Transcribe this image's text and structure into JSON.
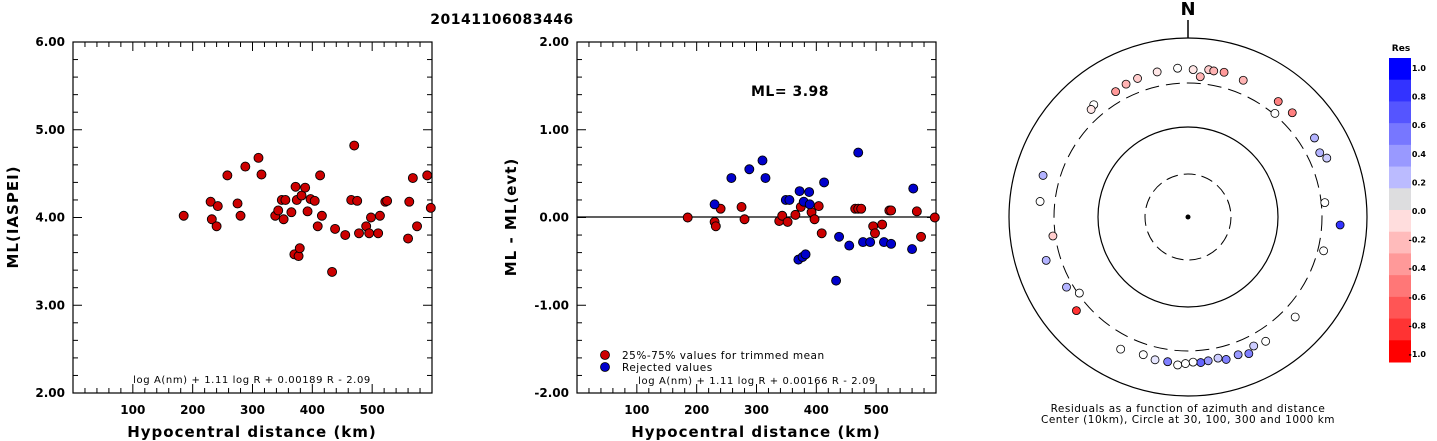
{
  "title": "20141106083446",
  "colors": {
    "red": "#cc0000",
    "blue": "#0000cc"
  },
  "chart_data": [
    {
      "type": "scatter",
      "name": "left",
      "xlabel": "Hypocentral distance (km)",
      "ylabel": "ML(IASPEI)",
      "xlim": [
        0,
        600
      ],
      "ylim": [
        2.0,
        6.0
      ],
      "xticks": [
        100,
        200,
        300,
        400,
        500
      ],
      "yticks": [
        "2.00",
        "3.00",
        "4.00",
        "5.00",
        "6.00"
      ],
      "formula": "log A(nm) + 1.11 log R + 0.00189 R - 2.09",
      "points": [
        [
          185,
          4.02
        ],
        [
          230,
          4.18
        ],
        [
          232,
          3.98
        ],
        [
          240,
          3.9
        ],
        [
          242,
          4.13
        ],
        [
          258,
          4.48
        ],
        [
          275,
          4.16
        ],
        [
          280,
          4.02
        ],
        [
          288,
          4.58
        ],
        [
          310,
          4.68
        ],
        [
          315,
          4.49
        ],
        [
          338,
          4.02
        ],
        [
          343,
          4.08
        ],
        [
          349,
          4.2
        ],
        [
          352,
          3.98
        ],
        [
          355,
          4.2
        ],
        [
          365,
          4.06
        ],
        [
          370,
          3.58
        ],
        [
          372,
          4.35
        ],
        [
          374,
          4.2
        ],
        [
          377,
          3.56
        ],
        [
          379,
          3.65
        ],
        [
          382,
          4.25
        ],
        [
          388,
          4.34
        ],
        [
          392,
          4.07
        ],
        [
          397,
          4.21
        ],
        [
          404,
          4.19
        ],
        [
          409,
          3.9
        ],
        [
          413,
          4.48
        ],
        [
          416,
          4.02
        ],
        [
          433,
          3.38
        ],
        [
          438,
          3.87
        ],
        [
          455,
          3.8
        ],
        [
          465,
          4.2
        ],
        [
          470,
          4.82
        ],
        [
          475,
          4.19
        ],
        [
          478,
          3.82
        ],
        [
          490,
          3.9
        ],
        [
          495,
          3.82
        ],
        [
          498,
          4.0
        ],
        [
          510,
          3.82
        ],
        [
          513,
          4.02
        ],
        [
          522,
          4.18
        ],
        [
          525,
          4.19
        ],
        [
          560,
          3.76
        ],
        [
          562,
          4.18
        ],
        [
          568,
          4.45
        ],
        [
          575,
          3.9
        ],
        [
          592,
          4.48
        ],
        [
          598,
          4.11
        ]
      ]
    },
    {
      "type": "scatter",
      "name": "middle",
      "xlabel": "Hypocentral distance (km)",
      "ylabel": "ML - ML(evt)",
      "xlim": [
        0,
        600
      ],
      "ylim": [
        -2.0,
        2.0
      ],
      "xticks": [
        100,
        200,
        300,
        400,
        500
      ],
      "yticks": [
        "-2.00",
        "-1.00",
        "0.00",
        "1.00",
        "2.00"
      ],
      "ml_label": "ML= 3.98",
      "formula": "log A(nm) + 1.11 log R + 0.00166 R - 2.09",
      "legend": [
        {
          "label": "25%-75% values for trimmed mean",
          "color": "#cc0000"
        },
        {
          "label": "Rejected values",
          "color": "#0000cc"
        }
      ],
      "points_red": [
        [
          185,
          0.0
        ],
        [
          230,
          -0.05
        ],
        [
          232,
          -0.1
        ],
        [
          240,
          0.1
        ],
        [
          275,
          0.12
        ],
        [
          280,
          -0.02
        ],
        [
          338,
          -0.04
        ],
        [
          343,
          0.02
        ],
        [
          352,
          -0.05
        ],
        [
          365,
          0.03
        ],
        [
          374,
          0.12
        ],
        [
          392,
          0.06
        ],
        [
          397,
          -0.02
        ],
        [
          404,
          0.13
        ],
        [
          409,
          -0.18
        ],
        [
          465,
          0.1
        ],
        [
          470,
          0.1
        ],
        [
          475,
          0.1
        ],
        [
          495,
          -0.1
        ],
        [
          498,
          -0.18
        ],
        [
          510,
          -0.08
        ],
        [
          522,
          0.08
        ],
        [
          525,
          0.08
        ],
        [
          568,
          0.07
        ],
        [
          575,
          -0.22
        ],
        [
          598,
          0.0
        ]
      ],
      "points_blue": [
        [
          230,
          0.15
        ],
        [
          258,
          0.45
        ],
        [
          288,
          0.55
        ],
        [
          310,
          0.65
        ],
        [
          315,
          0.45
        ],
        [
          349,
          0.2
        ],
        [
          355,
          0.2
        ],
        [
          370,
          -0.48
        ],
        [
          372,
          0.3
        ],
        [
          377,
          -0.45
        ],
        [
          379,
          0.18
        ],
        [
          382,
          -0.42
        ],
        [
          388,
          0.29
        ],
        [
          389,
          0.15
        ],
        [
          413,
          0.4
        ],
        [
          433,
          -0.72
        ],
        [
          438,
          -0.22
        ],
        [
          455,
          -0.32
        ],
        [
          470,
          0.74
        ],
        [
          478,
          -0.28
        ],
        [
          490,
          -0.28
        ],
        [
          513,
          -0.28
        ],
        [
          525,
          -0.3
        ],
        [
          560,
          -0.36
        ],
        [
          562,
          0.33
        ]
      ]
    }
  ],
  "polar": {
    "north_label": "N",
    "caption_line1": "Residuals as a function of azimuth and distance",
    "caption_line2": "Center (10km), Circle at 30, 100, 300 and 1000 km",
    "colorbar": {
      "title": "Res",
      "ticks": [
        "1.0",
        "0.8",
        "0.6",
        "0.4",
        "0.2",
        "0.0",
        "-0.2",
        "-0.4",
        "-0.6",
        "-0.8",
        "-1.0"
      ],
      "colors": [
        "#0000ff",
        "#3333ff",
        "#5555ff",
        "#7777ff",
        "#9999ff",
        "#bbbbff",
        "#dddddf",
        "#ffdddd",
        "#ffbbbb",
        "#ff9999",
        "#ff7777",
        "#ff5555",
        "#ff3333",
        "#ff0000"
      ]
    },
    "stations": [
      {
        "az": 2,
        "dist": 430,
        "res": -0.1
      },
      {
        "az": 356,
        "dist": 450,
        "res": 0.0
      },
      {
        "az": 8,
        "dist": 445,
        "res": -0.2
      },
      {
        "az": 10,
        "dist": 440,
        "res": -0.3
      },
      {
        "az": 14,
        "dist": 450,
        "res": -0.4
      },
      {
        "az": 5,
        "dist": 360,
        "res": -0.3
      },
      {
        "az": 348,
        "dist": 440,
        "res": -0.1
      },
      {
        "az": 340,
        "dist": 430,
        "res": -0.2
      },
      {
        "az": 22,
        "dist": 430,
        "res": -0.3
      },
      {
        "az": 335,
        "dist": 420,
        "res": -0.3
      },
      {
        "az": 330,
        "dist": 400,
        "res": -0.4
      },
      {
        "az": 320,
        "dist": 420,
        "res": 0.0
      },
      {
        "az": 318,
        "dist": 400,
        "res": -0.1
      },
      {
        "az": 38,
        "dist": 420,
        "res": -0.5
      },
      {
        "az": 45,
        "dist": 430,
        "res": -0.5
      },
      {
        "az": 40,
        "dist": 310,
        "res": 0.0
      },
      {
        "az": 58,
        "dist": 450,
        "res": 0.3
      },
      {
        "az": 64,
        "dist": 420,
        "res": 0.3
      },
      {
        "az": 67,
        "dist": 470,
        "res": 0.2
      },
      {
        "az": 84,
        "dist": 330,
        "res": 0.0
      },
      {
        "az": 93,
        "dist": 490,
        "res": 0.8
      },
      {
        "az": 104,
        "dist": 350,
        "res": 0.0
      },
      {
        "az": 133,
        "dist": 420,
        "res": 0.0
      },
      {
        "az": 148,
        "dist": 420,
        "res": 0.0
      },
      {
        "az": 153,
        "dist": 400,
        "res": 0.2
      },
      {
        "az": 156,
        "dist": 455,
        "res": 0.5
      },
      {
        "az": 160,
        "dist": 420,
        "res": 0.4
      },
      {
        "az": 165,
        "dist": 430,
        "res": 0.5
      },
      {
        "az": 168,
        "dist": 395,
        "res": 0.2
      },
      {
        "az": 172,
        "dist": 405,
        "res": 0.4
      },
      {
        "az": 175,
        "dist": 415,
        "res": 0.6
      },
      {
        "az": 178,
        "dist": 405,
        "res": 0.0
      },
      {
        "az": 181,
        "dist": 420,
        "res": 0.0
      },
      {
        "az": 184,
        "dist": 440,
        "res": 0.0
      },
      {
        "az": 188,
        "dist": 415,
        "res": 0.5
      },
      {
        "az": 193,
        "dist": 420,
        "res": 0.1
      },
      {
        "az": 198,
        "dist": 400,
        "res": 0.0
      },
      {
        "az": 207,
        "dist": 440,
        "res": 0.0
      },
      {
        "az": 230,
        "dist": 410,
        "res": -0.8
      },
      {
        "az": 235,
        "dist": 290,
        "res": 0.0
      },
      {
        "az": 240,
        "dist": 355,
        "res": 0.3
      },
      {
        "az": 253,
        "dist": 440,
        "res": 0.3
      },
      {
        "az": 262,
        "dist": 320,
        "res": -0.2
      },
      {
        "az": 276,
        "dist": 445,
        "res": 0.0
      },
      {
        "az": 286,
        "dist": 470,
        "res": 0.3
      }
    ]
  }
}
